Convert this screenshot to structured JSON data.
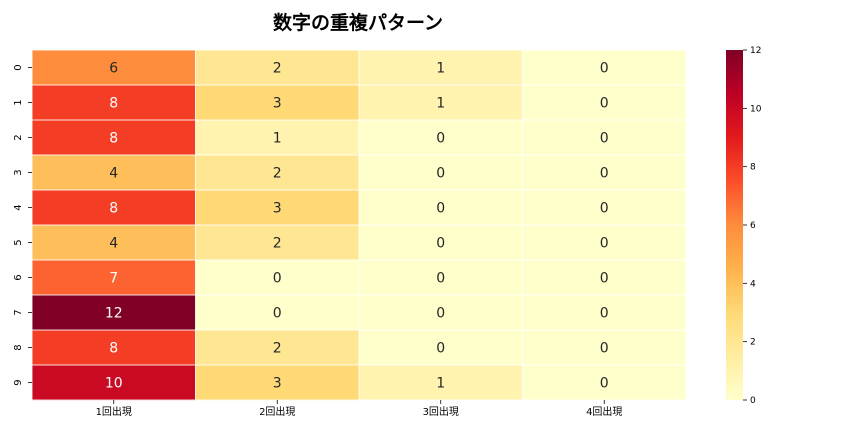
{
  "chart_data": {
    "type": "heatmap",
    "title": "数字の重複パターン",
    "xlabel": "",
    "ylabel": "",
    "x_categories": [
      "1回出現",
      "2回出現",
      "3回出現",
      "4回出現"
    ],
    "y_categories": [
      "0",
      "1",
      "2",
      "3",
      "4",
      "5",
      "6",
      "7",
      "8",
      "9"
    ],
    "values": [
      [
        6,
        2,
        1,
        0
      ],
      [
        8,
        3,
        1,
        0
      ],
      [
        8,
        1,
        0,
        0
      ],
      [
        4,
        2,
        0,
        0
      ],
      [
        8,
        3,
        0,
        0
      ],
      [
        4,
        2,
        0,
        0
      ],
      [
        7,
        0,
        0,
        0
      ],
      [
        12,
        0,
        0,
        0
      ],
      [
        8,
        2,
        0,
        0
      ],
      [
        10,
        3,
        1,
        0
      ]
    ],
    "colormap": "YlOrRd",
    "vmin": 0,
    "vmax": 12,
    "colorbar_ticks": [
      0,
      2,
      4,
      6,
      8,
      10,
      12
    ],
    "annotations": true,
    "grid": true
  }
}
